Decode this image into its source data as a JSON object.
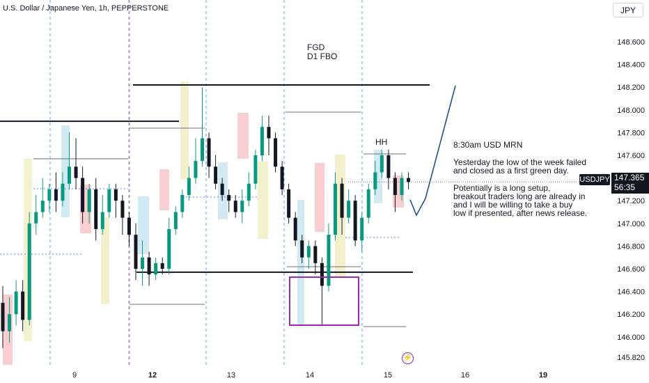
{
  "header": {
    "title": "U.S. Dollar / Japanese Yen, 1h, PEPPERSTONE",
    "currency": "JPY"
  },
  "price_tag": {
    "symbol": "USDJPY",
    "price": "147.365",
    "countdown": "56:35"
  },
  "annotations": {
    "fgd_line1": "FGD",
    "fgd_line2": "D1 FBO",
    "hh": "HH",
    "note_lines": [
      "8:30am USD MRN",
      "",
      "Yesterday the low of the week failed",
      "and closed as a first green day.",
      "",
      "Potentially is a long setup,",
      "breakout traders long are already in",
      "and I will be willing to take a buy",
      "low if presented, after news release."
    ]
  },
  "colors": {
    "up": "#089981",
    "down": "#131722",
    "session_red": "#f7c5c9",
    "session_yellow": "#f1edc4",
    "session_blue": "#c9e6ee",
    "projection": "#1e4f8c",
    "box": "#9c27b0",
    "guide": "#2962ff"
  },
  "chart_data": {
    "type": "candlestick",
    "symbol": "USDJPY",
    "timeframe": "1h",
    "y_ticks": [
      "148.600",
      "148.400",
      "148.200",
      "148.000",
      "147.800",
      "147.600",
      "147.400",
      "147.200",
      "147.000",
      "146.800",
      "146.600",
      "146.400",
      "146.200",
      "146.000",
      "145.820"
    ],
    "x_ticks": [
      {
        "label": "9",
        "bold": false
      },
      {
        "label": "12",
        "bold": true
      },
      {
        "label": "13",
        "bold": false
      },
      {
        "label": "14",
        "bold": false
      },
      {
        "label": "15",
        "bold": false
      },
      {
        "label": "16",
        "bold": false
      },
      {
        "label": "19",
        "bold": true
      }
    ],
    "ylim": [
      145.82,
      148.75
    ],
    "last_price": 147.365,
    "levels": [
      {
        "name": "weekly-high",
        "price": 148.22
      },
      {
        "name": "prior-day-high",
        "price": 147.9
      },
      {
        "name": "weekly-low",
        "price": 146.57
      }
    ],
    "candles": [
      [
        146.3,
        146.05,
        146.45,
        145.9
      ],
      [
        146.05,
        146.2,
        146.35,
        145.95
      ],
      [
        146.2,
        146.4,
        146.5,
        146.1
      ],
      [
        146.4,
        146.15,
        146.5,
        146.05
      ],
      [
        146.15,
        147.0,
        147.1,
        146.1
      ],
      [
        147.0,
        147.1,
        147.25,
        146.9
      ],
      [
        147.1,
        147.2,
        147.4,
        147.05
      ],
      [
        147.2,
        147.3,
        147.35,
        147.1
      ],
      [
        147.3,
        147.2,
        147.45,
        147.1
      ],
      [
        147.2,
        147.35,
        147.45,
        147.15
      ],
      [
        147.35,
        147.5,
        147.8,
        147.3
      ],
      [
        147.5,
        147.4,
        147.75,
        147.3
      ],
      [
        147.4,
        147.1,
        147.5,
        147.0
      ],
      [
        147.1,
        147.3,
        147.35,
        147.0
      ],
      [
        147.3,
        146.95,
        147.4,
        146.85
      ],
      [
        146.95,
        147.1,
        147.25,
        146.9
      ],
      [
        147.1,
        147.3,
        147.35,
        147.05
      ],
      [
        147.3,
        147.2,
        147.35,
        147.05
      ],
      [
        147.2,
        147.05,
        147.25,
        146.9
      ],
      [
        147.05,
        146.9,
        147.1,
        146.8
      ],
      [
        146.9,
        146.6,
        147.0,
        146.5
      ],
      [
        146.6,
        146.7,
        146.85,
        146.45
      ],
      [
        146.7,
        146.55,
        146.75,
        146.45
      ],
      [
        146.55,
        146.65,
        146.7,
        146.5
      ],
      [
        146.65,
        146.6,
        146.7,
        146.55
      ],
      [
        146.6,
        146.95,
        147.05,
        146.55
      ],
      [
        146.95,
        147.1,
        147.15,
        146.9
      ],
      [
        147.1,
        147.25,
        147.3,
        147.05
      ],
      [
        147.25,
        147.4,
        147.5,
        147.2
      ],
      [
        147.4,
        147.55,
        147.75,
        147.35
      ],
      [
        147.55,
        147.75,
        148.2,
        147.5
      ],
      [
        147.75,
        147.5,
        147.8,
        147.4
      ],
      [
        147.5,
        147.35,
        147.6,
        147.3
      ],
      [
        147.35,
        147.25,
        147.4,
        147.2
      ],
      [
        147.25,
        147.2,
        147.3,
        147.1
      ],
      [
        147.2,
        147.1,
        147.25,
        147.05
      ],
      [
        147.1,
        147.2,
        147.3,
        147.0
      ],
      [
        147.2,
        147.35,
        147.45,
        147.15
      ],
      [
        147.35,
        147.6,
        147.65,
        147.3
      ],
      [
        147.6,
        147.85,
        147.95,
        147.55
      ],
      [
        147.85,
        147.75,
        147.95,
        147.6
      ],
      [
        147.75,
        147.5,
        147.8,
        147.45
      ],
      [
        147.5,
        147.3,
        147.55,
        147.25
      ],
      [
        147.3,
        147.05,
        147.35,
        147.0
      ],
      [
        147.05,
        146.85,
        147.1,
        146.8
      ],
      [
        146.85,
        146.7,
        146.9,
        146.65
      ],
      [
        146.7,
        146.8,
        146.85,
        146.6
      ],
      [
        146.8,
        146.65,
        146.85,
        146.55
      ],
      [
        146.65,
        146.45,
        146.7,
        146.1
      ],
      [
        146.45,
        146.9,
        147.0,
        146.4
      ],
      [
        146.9,
        147.35,
        147.45,
        146.85
      ],
      [
        147.35,
        147.05,
        147.4,
        146.9
      ],
      [
        147.05,
        147.2,
        147.3,
        147.0
      ],
      [
        147.2,
        146.85,
        147.25,
        146.8
      ],
      [
        146.85,
        147.05,
        147.1,
        146.75
      ],
      [
        147.05,
        147.3,
        147.35,
        147.0
      ],
      [
        147.3,
        147.45,
        147.55,
        147.25
      ],
      [
        147.45,
        147.6,
        147.65,
        147.4
      ],
      [
        147.6,
        147.4,
        147.65,
        147.3
      ],
      [
        147.4,
        147.25,
        147.45,
        147.1
      ],
      [
        147.25,
        147.4,
        147.45,
        147.2
      ],
      [
        147.4,
        147.365,
        147.45,
        147.3
      ]
    ]
  }
}
